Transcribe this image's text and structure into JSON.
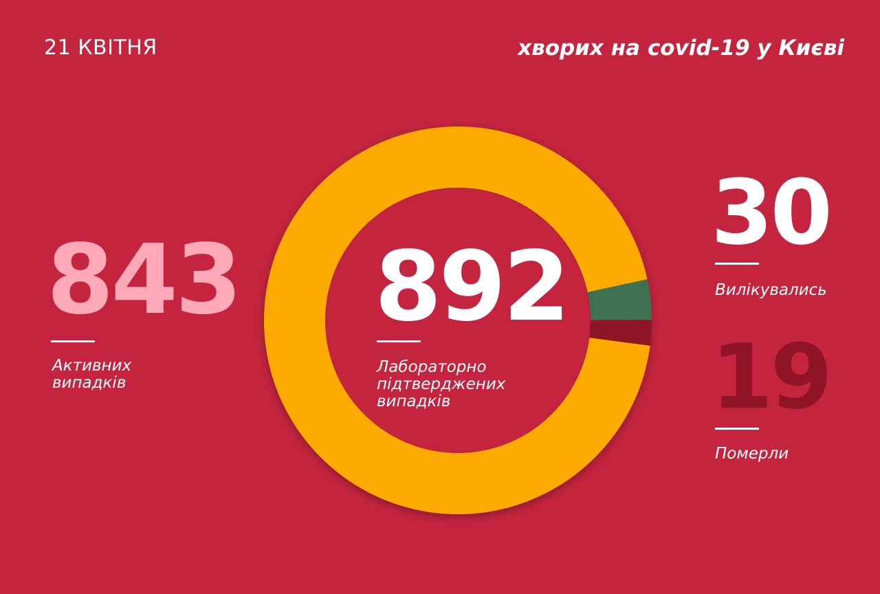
{
  "header": {
    "date": "21 КВІТНЯ",
    "headline": "хворих на covid-19 у Києві"
  },
  "colors": {
    "background": "#c4243e",
    "active": "#ffa8b8",
    "recovered": "#ffffff",
    "deaths": "#8e1426",
    "slice_active": "#ffaa00",
    "slice_recovered": "#3e7150",
    "slice_deaths": "#8e1426"
  },
  "stats": {
    "active": {
      "value": "843",
      "label_lines": [
        "Активних",
        "випадків"
      ]
    },
    "confirmed": {
      "value": "892",
      "label_lines": [
        "Лабораторно",
        "підтверджених",
        "випадків"
      ]
    },
    "recovered": {
      "value": "30",
      "label_lines": [
        "Вилікувались"
      ]
    },
    "deaths": {
      "value": "19",
      "label_lines": [
        "Померли"
      ]
    }
  },
  "chart_data": {
    "type": "pie",
    "total": 892,
    "slices": [
      {
        "key": "active",
        "value": 843
      },
      {
        "key": "recovered",
        "value": 30
      },
      {
        "key": "deaths",
        "value": 19
      }
    ]
  }
}
